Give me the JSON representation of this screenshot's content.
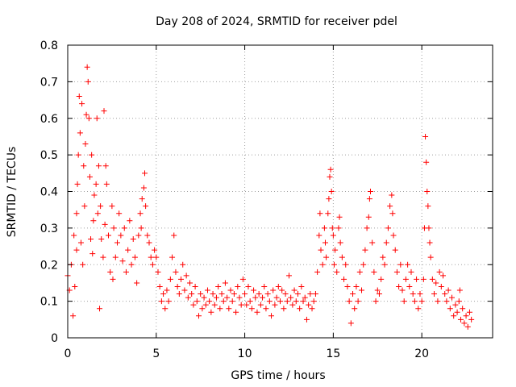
{
  "chart_data": {
    "type": "scatter",
    "title": "Day 208 of 2024, SRMTID for receiver pdel",
    "xlabel": "GPS time / hours",
    "ylabel": "SRMTID / TECUs",
    "xlim": [
      0,
      24
    ],
    "ylim": [
      0,
      0.8
    ],
    "x_ticks": [
      0,
      5,
      10,
      15,
      20
    ],
    "x_tick_labels": [
      "0",
      "5",
      "10",
      "15",
      "20"
    ],
    "y_ticks": [
      0,
      0.1,
      0.2,
      0.3,
      0.4,
      0.5,
      0.6,
      0.7,
      0.8
    ],
    "y_tick_labels": [
      "0",
      "0.1",
      "0.2",
      "0.3",
      "0.4",
      "0.5",
      "0.6",
      "0.7",
      "0.8"
    ],
    "grid": true,
    "marker": "+",
    "marker_color": "#ff0000",
    "series": [
      {
        "name": "SRMTID",
        "points": [
          [
            0.0,
            0.17
          ],
          [
            0.1,
            0.13
          ],
          [
            0.2,
            0.2
          ],
          [
            0.3,
            0.06
          ],
          [
            0.35,
            0.28
          ],
          [
            0.4,
            0.14
          ],
          [
            0.5,
            0.34
          ],
          [
            0.5,
            0.24
          ],
          [
            0.55,
            0.42
          ],
          [
            0.6,
            0.5
          ],
          [
            0.65,
            0.66
          ],
          [
            0.7,
            0.56
          ],
          [
            0.75,
            0.26
          ],
          [
            0.8,
            0.64
          ],
          [
            0.85,
            0.2
          ],
          [
            0.9,
            0.47
          ],
          [
            0.95,
            0.36
          ],
          [
            1.0,
            0.53
          ],
          [
            1.05,
            0.61
          ],
          [
            1.1,
            0.74
          ],
          [
            1.15,
            0.7
          ],
          [
            1.2,
            0.6
          ],
          [
            1.25,
            0.44
          ],
          [
            1.3,
            0.27
          ],
          [
            1.35,
            0.5
          ],
          [
            1.4,
            0.23
          ],
          [
            1.45,
            0.32
          ],
          [
            1.5,
            0.39
          ],
          [
            1.6,
            0.42
          ],
          [
            1.65,
            0.6
          ],
          [
            1.7,
            0.34
          ],
          [
            1.75,
            0.47
          ],
          [
            1.8,
            0.08
          ],
          [
            1.85,
            0.36
          ],
          [
            1.9,
            0.27
          ],
          [
            2.0,
            0.22
          ],
          [
            2.05,
            0.62
          ],
          [
            2.1,
            0.31
          ],
          [
            2.15,
            0.47
          ],
          [
            2.2,
            0.42
          ],
          [
            2.3,
            0.28
          ],
          [
            2.4,
            0.18
          ],
          [
            2.5,
            0.36
          ],
          [
            2.55,
            0.16
          ],
          [
            2.6,
            0.3
          ],
          [
            2.7,
            0.22
          ],
          [
            2.8,
            0.26
          ],
          [
            2.9,
            0.34
          ],
          [
            3.0,
            0.28
          ],
          [
            3.1,
            0.21
          ],
          [
            3.2,
            0.3
          ],
          [
            3.3,
            0.18
          ],
          [
            3.4,
            0.24
          ],
          [
            3.5,
            0.32
          ],
          [
            3.6,
            0.2
          ],
          [
            3.7,
            0.27
          ],
          [
            3.8,
            0.22
          ],
          [
            3.9,
            0.15
          ],
          [
            4.0,
            0.28
          ],
          [
            4.1,
            0.34
          ],
          [
            4.15,
            0.3
          ],
          [
            4.2,
            0.38
          ],
          [
            4.3,
            0.41
          ],
          [
            4.35,
            0.45
          ],
          [
            4.4,
            0.36
          ],
          [
            4.5,
            0.28
          ],
          [
            4.6,
            0.26
          ],
          [
            4.7,
            0.22
          ],
          [
            4.8,
            0.2
          ],
          [
            4.9,
            0.24
          ],
          [
            5.0,
            0.22
          ],
          [
            5.1,
            0.18
          ],
          [
            5.2,
            0.14
          ],
          [
            5.3,
            0.1
          ],
          [
            5.4,
            0.12
          ],
          [
            5.5,
            0.08
          ],
          [
            5.6,
            0.13
          ],
          [
            5.7,
            0.1
          ],
          [
            5.8,
            0.16
          ],
          [
            5.9,
            0.22
          ],
          [
            6.0,
            0.28
          ],
          [
            6.1,
            0.18
          ],
          [
            6.2,
            0.14
          ],
          [
            6.3,
            0.12
          ],
          [
            6.4,
            0.16
          ],
          [
            6.5,
            0.2
          ],
          [
            6.6,
            0.13
          ],
          [
            6.7,
            0.17
          ],
          [
            6.8,
            0.11
          ],
          [
            6.9,
            0.15
          ],
          [
            7.0,
            0.12
          ],
          [
            7.1,
            0.09
          ],
          [
            7.2,
            0.14
          ],
          [
            7.3,
            0.1
          ],
          [
            7.4,
            0.06
          ],
          [
            7.5,
            0.12
          ],
          [
            7.6,
            0.08
          ],
          [
            7.7,
            0.11
          ],
          [
            7.8,
            0.09
          ],
          [
            7.9,
            0.13
          ],
          [
            8.0,
            0.1
          ],
          [
            8.1,
            0.07
          ],
          [
            8.2,
            0.12
          ],
          [
            8.3,
            0.09
          ],
          [
            8.4,
            0.11
          ],
          [
            8.5,
            0.14
          ],
          [
            8.6,
            0.08
          ],
          [
            8.7,
            0.12
          ],
          [
            8.8,
            0.1
          ],
          [
            8.9,
            0.15
          ],
          [
            9.0,
            0.11
          ],
          [
            9.1,
            0.08
          ],
          [
            9.2,
            0.13
          ],
          [
            9.3,
            0.1
          ],
          [
            9.4,
            0.12
          ],
          [
            9.5,
            0.07
          ],
          [
            9.6,
            0.14
          ],
          [
            9.7,
            0.11
          ],
          [
            9.8,
            0.09
          ],
          [
            9.9,
            0.16
          ],
          [
            10.0,
            0.12
          ],
          [
            10.1,
            0.09
          ],
          [
            10.2,
            0.14
          ],
          [
            10.3,
            0.1
          ],
          [
            10.4,
            0.08
          ],
          [
            10.5,
            0.13
          ],
          [
            10.6,
            0.11
          ],
          [
            10.7,
            0.07
          ],
          [
            10.8,
            0.12
          ],
          [
            10.9,
            0.09
          ],
          [
            11.0,
            0.11
          ],
          [
            11.1,
            0.14
          ],
          [
            11.2,
            0.08
          ],
          [
            11.3,
            0.12
          ],
          [
            11.4,
            0.1
          ],
          [
            11.5,
            0.06
          ],
          [
            11.6,
            0.13
          ],
          [
            11.7,
            0.09
          ],
          [
            11.8,
            0.11
          ],
          [
            11.9,
            0.14
          ],
          [
            12.0,
            0.1
          ],
          [
            12.1,
            0.13
          ],
          [
            12.2,
            0.08
          ],
          [
            12.3,
            0.12
          ],
          [
            12.4,
            0.1
          ],
          [
            12.5,
            0.17
          ],
          [
            12.6,
            0.11
          ],
          [
            12.7,
            0.09
          ],
          [
            12.8,
            0.13
          ],
          [
            12.9,
            0.1
          ],
          [
            13.0,
            0.12
          ],
          [
            13.1,
            0.08
          ],
          [
            13.2,
            0.14
          ],
          [
            13.3,
            0.1
          ],
          [
            13.4,
            0.11
          ],
          [
            13.5,
            0.05
          ],
          [
            13.6,
            0.09
          ],
          [
            13.7,
            0.12
          ],
          [
            13.8,
            0.08
          ],
          [
            13.9,
            0.1
          ],
          [
            14.0,
            0.12
          ],
          [
            14.1,
            0.18
          ],
          [
            14.2,
            0.28
          ],
          [
            14.25,
            0.34
          ],
          [
            14.3,
            0.24
          ],
          [
            14.4,
            0.2
          ],
          [
            14.5,
            0.3
          ],
          [
            14.55,
            0.26
          ],
          [
            14.6,
            0.22
          ],
          [
            14.7,
            0.34
          ],
          [
            14.75,
            0.38
          ],
          [
            14.8,
            0.44
          ],
          [
            14.85,
            0.46
          ],
          [
            14.9,
            0.4
          ],
          [
            14.95,
            0.3
          ],
          [
            15.0,
            0.28
          ],
          [
            15.05,
            0.2
          ],
          [
            15.1,
            0.24
          ],
          [
            15.2,
            0.18
          ],
          [
            15.3,
            0.3
          ],
          [
            15.35,
            0.33
          ],
          [
            15.4,
            0.26
          ],
          [
            15.5,
            0.22
          ],
          [
            15.6,
            0.16
          ],
          [
            15.7,
            0.2
          ],
          [
            15.8,
            0.14
          ],
          [
            15.9,
            0.1
          ],
          [
            16.0,
            0.04
          ],
          [
            16.1,
            0.12
          ],
          [
            16.2,
            0.08
          ],
          [
            16.3,
            0.14
          ],
          [
            16.4,
            0.1
          ],
          [
            16.5,
            0.18
          ],
          [
            16.6,
            0.13
          ],
          [
            16.7,
            0.2
          ],
          [
            16.8,
            0.24
          ],
          [
            16.9,
            0.3
          ],
          [
            17.0,
            0.33
          ],
          [
            17.05,
            0.38
          ],
          [
            17.1,
            0.4
          ],
          [
            17.2,
            0.26
          ],
          [
            17.3,
            0.18
          ],
          [
            17.4,
            0.1
          ],
          [
            17.5,
            0.13
          ],
          [
            17.6,
            0.12
          ],
          [
            17.7,
            0.16
          ],
          [
            17.8,
            0.22
          ],
          [
            17.9,
            0.2
          ],
          [
            18.0,
            0.26
          ],
          [
            18.1,
            0.3
          ],
          [
            18.2,
            0.36
          ],
          [
            18.3,
            0.39
          ],
          [
            18.35,
            0.34
          ],
          [
            18.4,
            0.28
          ],
          [
            18.5,
            0.24
          ],
          [
            18.6,
            0.18
          ],
          [
            18.7,
            0.14
          ],
          [
            18.8,
            0.2
          ],
          [
            18.9,
            0.13
          ],
          [
            19.0,
            0.1
          ],
          [
            19.1,
            0.16
          ],
          [
            19.2,
            0.2
          ],
          [
            19.3,
            0.14
          ],
          [
            19.4,
            0.18
          ],
          [
            19.5,
            0.12
          ],
          [
            19.6,
            0.1
          ],
          [
            19.7,
            0.16
          ],
          [
            19.8,
            0.08
          ],
          [
            19.9,
            0.12
          ],
          [
            20.0,
            0.1
          ],
          [
            20.1,
            0.16
          ],
          [
            20.15,
            0.3
          ],
          [
            20.2,
            0.55
          ],
          [
            20.25,
            0.48
          ],
          [
            20.3,
            0.4
          ],
          [
            20.35,
            0.36
          ],
          [
            20.4,
            0.3
          ],
          [
            20.45,
            0.26
          ],
          [
            20.5,
            0.22
          ],
          [
            20.6,
            0.16
          ],
          [
            20.7,
            0.12
          ],
          [
            20.8,
            0.15
          ],
          [
            20.9,
            0.1
          ],
          [
            21.0,
            0.18
          ],
          [
            21.1,
            0.14
          ],
          [
            21.2,
            0.17
          ],
          [
            21.3,
            0.12
          ],
          [
            21.4,
            0.1
          ],
          [
            21.5,
            0.13
          ],
          [
            21.6,
            0.08
          ],
          [
            21.7,
            0.11
          ],
          [
            21.8,
            0.06
          ],
          [
            21.9,
            0.09
          ],
          [
            22.0,
            0.07
          ],
          [
            22.1,
            0.1
          ],
          [
            22.15,
            0.13
          ],
          [
            22.2,
            0.05
          ],
          [
            22.3,
            0.08
          ],
          [
            22.4,
            0.04
          ],
          [
            22.5,
            0.06
          ],
          [
            22.6,
            0.03
          ],
          [
            22.7,
            0.07
          ],
          [
            22.8,
            0.05
          ]
        ]
      }
    ]
  }
}
